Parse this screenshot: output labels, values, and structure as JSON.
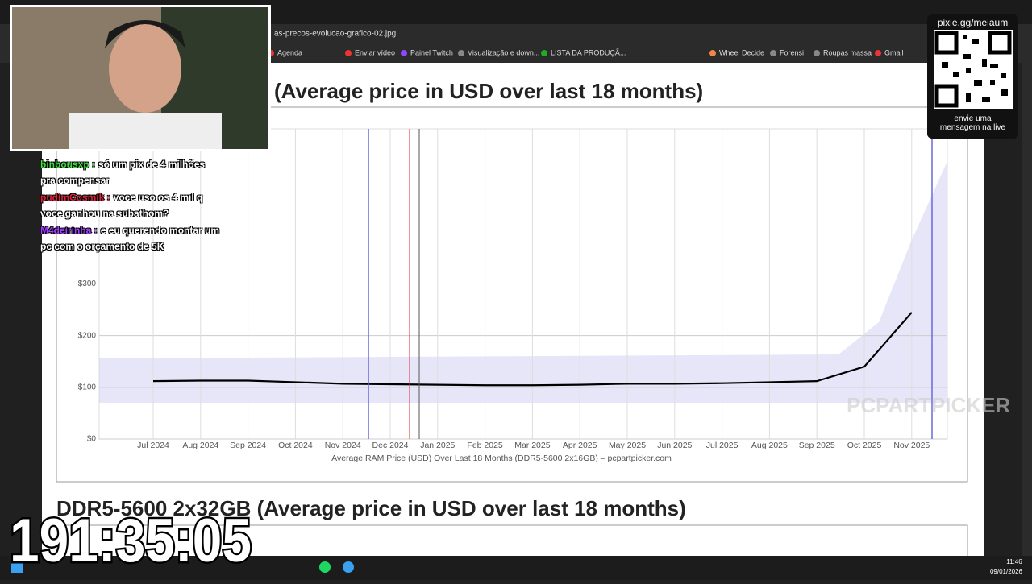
{
  "browser": {
    "file_name": "as-precos-evolucao-grafico-02.jpg",
    "bookmarks": [
      "Agenda",
      "Enviar vídeo",
      "Painel Twitch",
      "Visualização e down...",
      "LISTA DA PRODUÇÃ...",
      "Wheel Decide",
      "Forensi",
      "Roupas massa",
      "Gmail"
    ]
  },
  "page": {
    "heading_1": "(Average price in USD over last 18 months)",
    "heading_2": "DDR5-5600 2x32GB (Average price in USD over last 18 months)",
    "watermark": "PCPARTPICKER"
  },
  "chart_data": {
    "type": "line",
    "xlabel": "Average RAM Price (USD) Over Last 18 Months (DDR5-5600 2x16GB) – pcpartpicker.com",
    "categories": [
      "Jul 2024",
      "Aug 2024",
      "Sep 2024",
      "Oct 2024",
      "Nov 2024",
      "Dec 2024",
      "Jan 2025",
      "Feb 2025",
      "Mar 2025",
      "Apr 2025",
      "May 2025",
      "Jun 2025",
      "Jul 2025",
      "Aug 2025",
      "Sep 2025",
      "Oct 2025",
      "Nov 2025"
    ],
    "values": [
      112,
      113,
      113,
      110,
      107,
      106,
      105,
      104,
      104,
      105,
      107,
      107,
      108,
      110,
      112,
      140,
      245
    ],
    "color": "#000000",
    "ylim": [
      0,
      600
    ],
    "yticks": [
      {
        "value": 0,
        "label": "$0"
      },
      {
        "value": 100,
        "label": "$100"
      },
      {
        "value": 200,
        "label": "$200"
      },
      {
        "value": 300,
        "label": "$300"
      }
    ],
    "grid": true
  },
  "chat": [
    {
      "user": "binbousxp :",
      "message": "só um pix de 4 milhões pra compensar",
      "color": "#3fe03f"
    },
    {
      "user": "pudimCosmik :",
      "message": "voce uso os 4 mil q voce ganhou na subathom?",
      "color": "#e0203a"
    },
    {
      "user": "M4deirinha :",
      "message": "e eu querendo montar um pc com o orçamento de 5K",
      "color": "#a040ff"
    }
  ],
  "overlay": {
    "link": "pixie.gg/meiaum",
    "caption_1": "envie uma",
    "caption_2": "mensagem na live"
  },
  "timer": "191:35:05",
  "taskbar": {
    "time": "11:46",
    "date": "09/01/2026"
  }
}
